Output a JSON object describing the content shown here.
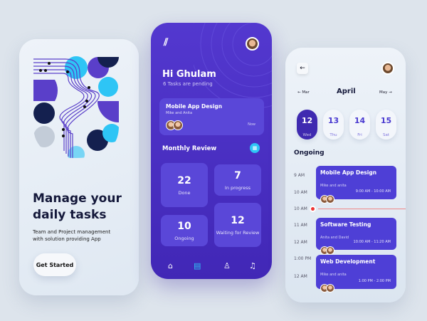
{
  "onboarding": {
    "title_line1": "Manage your",
    "title_line2": "daily tasks",
    "subtitle": "Team and Project management with solution providing App",
    "cta": "Get Started"
  },
  "home": {
    "greeting": "Hi Ghulam",
    "pending": "6 Tasks are pending",
    "current_task": {
      "title": "Mobile App Design",
      "people": "Mike and Anita",
      "time": "Now"
    },
    "section": "Monthly Review",
    "stats": [
      {
        "value": "22",
        "label": "Done"
      },
      {
        "value": "7",
        "label": "In progress"
      },
      {
        "value": "10",
        "label": "Ongoing"
      },
      {
        "value": "12",
        "label": "Waiting for Review"
      }
    ],
    "nav": [
      "home-icon",
      "document-icon",
      "profile-icon",
      "bell-icon"
    ],
    "accent": "#2ec5f5"
  },
  "schedule": {
    "month": "April",
    "prev": "Mar",
    "next": "May",
    "days": [
      {
        "num": "12",
        "day": "Wed",
        "selected": true
      },
      {
        "num": "13",
        "day": "Thu"
      },
      {
        "num": "14",
        "day": "Fri"
      },
      {
        "num": "15",
        "day": "Sat"
      }
    ],
    "section": "Ongoing",
    "times": [
      "9 AM",
      "10 AM",
      "10 AM",
      "11 AM",
      "12 AM",
      "1:00 PM",
      "12 AM"
    ],
    "events": [
      {
        "title": "Mobile App Design",
        "people": "Mike and anita",
        "time": "9:00 AM - 10:00 AM"
      },
      {
        "title": "Software Testing",
        "people": "Anita and David",
        "time": "10:00 AM - 11:20 AM"
      },
      {
        "title": "Web Development",
        "people": "Mike and anita",
        "time": "1:00 PM - 2:00 PM"
      }
    ]
  }
}
